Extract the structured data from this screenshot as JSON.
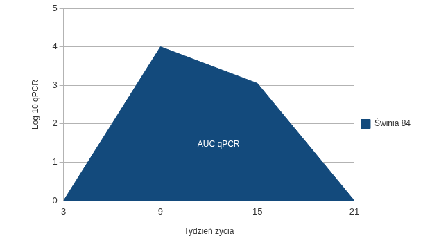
{
  "chart_data": {
    "type": "area",
    "x_label": "Tydzień życia",
    "y_label": "Log 10 qPCR",
    "annotation": "AUC qPCR",
    "x": [
      3,
      9,
      15,
      21
    ],
    "series": [
      {
        "name": "Świnia 84",
        "color": "#134a7c",
        "values": [
          0,
          4,
          3.05,
          0
        ]
      }
    ],
    "xlim": [
      3,
      21
    ],
    "xticks": [
      3,
      9,
      15,
      21
    ],
    "ylim": [
      0,
      5
    ],
    "yticks": [
      0,
      1,
      2,
      3,
      4,
      5
    ],
    "grid": true,
    "legend": "right"
  }
}
